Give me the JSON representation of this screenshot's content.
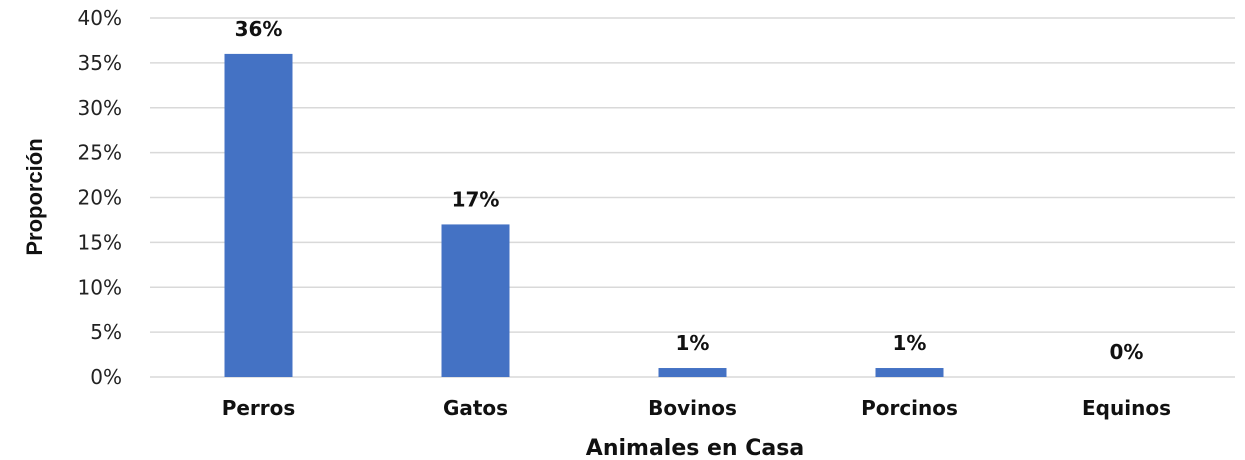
{
  "chart_data": {
    "type": "bar",
    "categories": [
      "Perros",
      "Gatos",
      "Bovinos",
      "Porcinos",
      "Equinos"
    ],
    "values": [
      36,
      17,
      1,
      1,
      0
    ],
    "data_labels": [
      "36%",
      "17%",
      "1%",
      "1%",
      "0%"
    ],
    "title": "",
    "xlabel": "Animales en Casa",
    "ylabel": "Proporción",
    "ylim": [
      0,
      40
    ],
    "yticks": [
      0,
      5,
      10,
      15,
      20,
      25,
      30,
      35,
      40
    ],
    "ytick_labels": [
      "0%",
      "5%",
      "10%",
      "15%",
      "20%",
      "25%",
      "30%",
      "35%",
      "40%"
    ],
    "grid": true,
    "legend": "none",
    "colors": {
      "bar": "#4472C4",
      "grid": "#d9d9d9"
    }
  }
}
